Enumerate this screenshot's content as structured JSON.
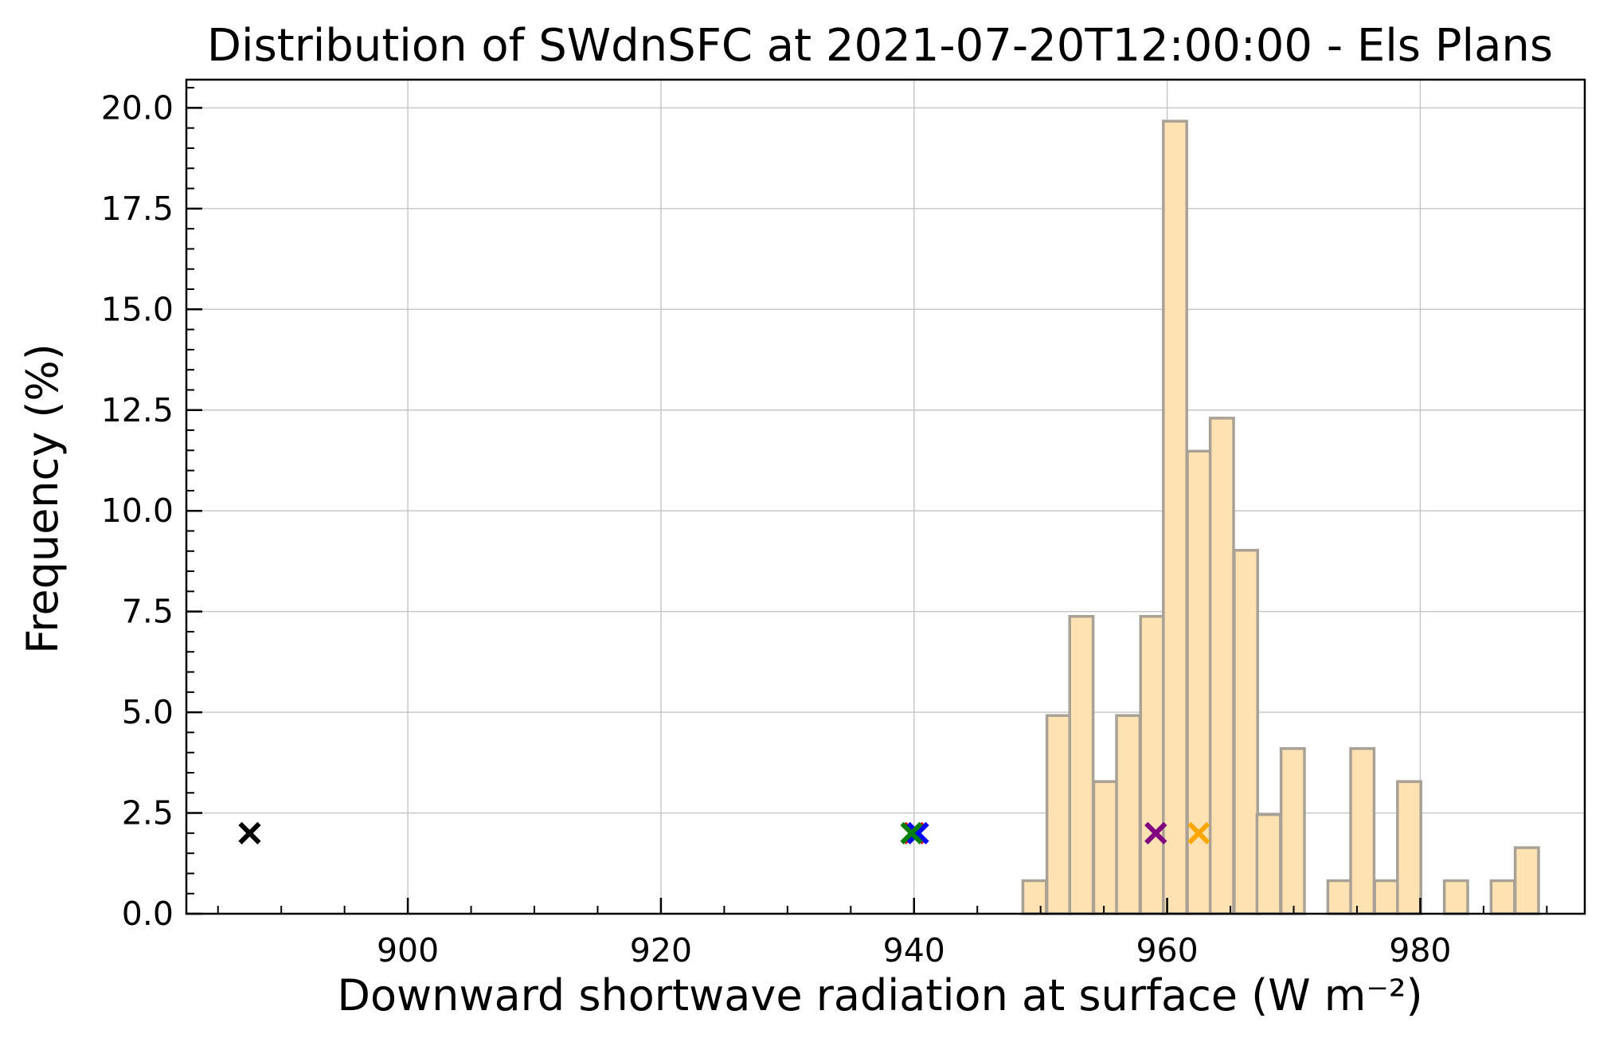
{
  "chart_data": {
    "type": "bar",
    "title": "Distribution of SWdnSFC at 2021-07-20T12:00:00 - Els Plans",
    "xlabel": "Downward shortwave radiation at surface (W m⁻²)",
    "ylabel": "Frequency (%)",
    "xlim": [
      882.5,
      993.0
    ],
    "ylim": [
      0,
      20.7
    ],
    "xticks": [
      900,
      920,
      940,
      960,
      980
    ],
    "xtick_labels": [
      "900",
      "920",
      "940",
      "960",
      "980"
    ],
    "yticks": [
      0,
      2.5,
      5,
      7.5,
      10,
      12.5,
      15,
      17.5,
      20
    ],
    "ytick_labels": [
      "0.0",
      "2.5",
      "5.0",
      "7.5",
      "10.0",
      "12.5",
      "15.0",
      "17.5",
      "20.0"
    ],
    "grid": true,
    "bar_color": "#ffe2b2",
    "bar_edge_color": "#a8a196",
    "bin_width": 1.85,
    "bins": [
      {
        "x": 948.6,
        "value": 0.82
      },
      {
        "x": 950.5,
        "value": 4.92
      },
      {
        "x": 952.3,
        "value": 7.38
      },
      {
        "x": 954.2,
        "value": 3.28
      },
      {
        "x": 956.0,
        "value": 4.92
      },
      {
        "x": 957.9,
        "value": 7.38
      },
      {
        "x": 959.7,
        "value": 19.67
      },
      {
        "x": 961.6,
        "value": 11.48
      },
      {
        "x": 963.4,
        "value": 12.3
      },
      {
        "x": 965.3,
        "value": 9.02
      },
      {
        "x": 967.1,
        "value": 2.46
      },
      {
        "x": 969.0,
        "value": 4.1
      },
      {
        "x": 970.8,
        "value": 0
      },
      {
        "x": 972.7,
        "value": 0.82
      },
      {
        "x": 974.5,
        "value": 4.1
      },
      {
        "x": 976.4,
        "value": 0.82
      },
      {
        "x": 978.2,
        "value": 3.28
      },
      {
        "x": 980.1,
        "value": 0
      },
      {
        "x": 981.9,
        "value": 0.82
      },
      {
        "x": 983.8,
        "value": 0
      },
      {
        "x": 985.6,
        "value": 0.82
      },
      {
        "x": 987.5,
        "value": 1.64
      }
    ],
    "markers": [
      {
        "x": 887.5,
        "y": 2.0,
        "color": "#000000"
      },
      {
        "x": 940.0,
        "y": 2.0,
        "color": "#ff0000"
      },
      {
        "x": 940.3,
        "y": 2.0,
        "color": "#0000ff"
      },
      {
        "x": 939.8,
        "y": 2.0,
        "color": "#008000"
      },
      {
        "x": 959.1,
        "y": 2.0,
        "color": "#800080"
      },
      {
        "x": 962.5,
        "y": 2.0,
        "color": "#ffa500"
      }
    ]
  }
}
